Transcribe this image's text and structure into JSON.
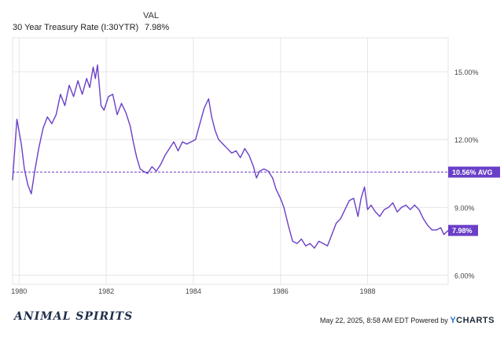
{
  "legend": {
    "value_header": "VAL",
    "series_name": "30 Year Treasury Rate (I:30YTR)",
    "series_value": "7.98%"
  },
  "footer": {
    "logo": "ANIMAL SPIRITS",
    "timestamp": "May 22, 2025, 8:58 AM EDT Powered by",
    "brand": "YCHARTS"
  },
  "colors": {
    "series": "#6a3fc8",
    "grid": "#e6e6e6",
    "avg_label_bg": "#6a3fc8"
  },
  "chart_data": {
    "type": "line",
    "title": "",
    "xlabel": "",
    "ylabel": "",
    "x_ticks": [
      "1980",
      "1982",
      "1984",
      "1986",
      "1988"
    ],
    "x_tick_values": [
      1980,
      1982,
      1984,
      1986,
      1988
    ],
    "y_ticks": [
      "6.00%",
      "9.00%",
      "12.00%",
      "15.00%"
    ],
    "y_tick_values": [
      6,
      9,
      12,
      15
    ],
    "xlim": [
      1979.85,
      1989.85
    ],
    "ylim": [
      5.6,
      16.5
    ],
    "grid": true,
    "average": {
      "value": 10.56,
      "label": "10.56% AVG"
    },
    "last": {
      "value": 7.98,
      "label": "7.98%"
    },
    "series": [
      {
        "name": "30 Year Treasury Rate (I:30YTR)",
        "x": [
          1979.85,
          1979.95,
          1980.05,
          1980.12,
          1980.2,
          1980.28,
          1980.35,
          1980.45,
          1980.55,
          1980.65,
          1980.75,
          1980.85,
          1980.95,
          1981.05,
          1981.15,
          1981.25,
          1981.35,
          1981.45,
          1981.55,
          1981.62,
          1981.7,
          1981.75,
          1981.8,
          1981.88,
          1981.95,
          1982.05,
          1982.15,
          1982.25,
          1982.35,
          1982.45,
          1982.55,
          1982.62,
          1982.7,
          1982.78,
          1982.85,
          1982.95,
          1983.05,
          1983.15,
          1983.25,
          1983.35,
          1983.45,
          1983.55,
          1983.65,
          1983.75,
          1983.85,
          1983.95,
          1984.05,
          1984.15,
          1984.25,
          1984.35,
          1984.42,
          1984.5,
          1984.58,
          1984.68,
          1984.78,
          1984.88,
          1984.98,
          1985.08,
          1985.18,
          1985.28,
          1985.38,
          1985.45,
          1985.52,
          1985.62,
          1985.72,
          1985.82,
          1985.9,
          1986.0,
          1986.08,
          1986.18,
          1986.28,
          1986.38,
          1986.48,
          1986.58,
          1986.68,
          1986.78,
          1986.88,
          1986.98,
          1987.08,
          1987.18,
          1987.28,
          1987.38,
          1987.48,
          1987.58,
          1987.68,
          1987.78,
          1987.85,
          1987.93,
          1988.0,
          1988.08,
          1988.18,
          1988.28,
          1988.38,
          1988.48,
          1988.58,
          1988.68,
          1988.78,
          1988.88,
          1988.98,
          1989.08,
          1989.18,
          1989.28,
          1989.38,
          1989.48,
          1989.58,
          1989.68,
          1989.75,
          1989.85
        ],
        "values": [
          10.2,
          12.9,
          11.8,
          10.7,
          10.0,
          9.6,
          10.5,
          11.6,
          12.5,
          13.0,
          12.7,
          13.1,
          14.0,
          13.5,
          14.4,
          13.9,
          14.6,
          14.0,
          14.7,
          14.3,
          15.2,
          14.7,
          15.3,
          13.5,
          13.3,
          13.9,
          14.0,
          13.1,
          13.6,
          13.2,
          12.6,
          11.9,
          11.2,
          10.7,
          10.6,
          10.5,
          10.8,
          10.6,
          10.9,
          11.3,
          11.6,
          11.9,
          11.5,
          11.9,
          11.8,
          11.9,
          12.0,
          12.7,
          13.4,
          13.8,
          13.0,
          12.4,
          12.0,
          11.8,
          11.6,
          11.4,
          11.5,
          11.2,
          11.6,
          11.3,
          10.8,
          10.3,
          10.6,
          10.7,
          10.6,
          10.3,
          9.8,
          9.4,
          9.0,
          8.2,
          7.5,
          7.4,
          7.6,
          7.3,
          7.4,
          7.2,
          7.5,
          7.4,
          7.3,
          7.8,
          8.3,
          8.5,
          8.9,
          9.3,
          9.4,
          8.6,
          9.4,
          9.9,
          8.9,
          9.1,
          8.8,
          8.6,
          8.9,
          9.0,
          9.2,
          8.8,
          9.0,
          9.1,
          8.9,
          9.1,
          8.9,
          8.5,
          8.2,
          8.0,
          8.0,
          8.1,
          7.8,
          7.98
        ]
      }
    ]
  }
}
